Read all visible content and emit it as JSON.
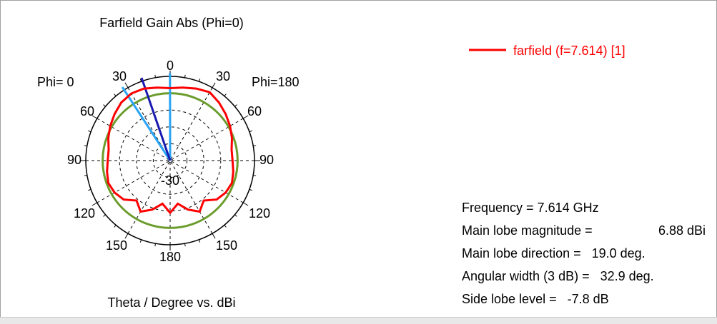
{
  "chart_data": {
    "type": "polar",
    "title": "Farfield Gain Abs (Phi=0)",
    "xlabel": "Theta / Degree vs. dBi",
    "phi_left_label": "Phi=  0",
    "phi_right_label": "Phi=180",
    "theta_tick_labels_top": [
      "30",
      "0",
      "30"
    ],
    "theta_tick_labels_side": [
      "60",
      "90",
      "120",
      "150",
      "180",
      "150",
      "120",
      "90",
      "60"
    ],
    "center_label": "-30",
    "grid": true,
    "radial_range_dBi": [
      -40,
      10
    ],
    "series": [
      {
        "name": "farfield (f=7.614) [1]",
        "color": "#ff0000",
        "theta_deg": [
          -180,
          -170,
          -160,
          -150,
          -140,
          -130,
          -120,
          -110,
          -100,
          -90,
          -80,
          -70,
          -60,
          -50,
          -40,
          -30,
          -20,
          -10,
          0,
          10,
          20,
          30,
          40,
          50,
          60,
          70,
          80,
          90,
          100,
          110,
          120,
          130,
          140,
          150,
          160,
          170,
          180
        ],
        "gain_dBi": [
          -9,
          -14,
          -9,
          -5,
          -9,
          -4,
          -2,
          -1,
          -2,
          -3,
          -3,
          -1,
          1,
          3,
          5,
          6,
          5.5,
          4,
          3,
          4,
          5.5,
          6.88,
          5,
          3,
          1,
          -1,
          -3,
          -3,
          -2,
          -1,
          -2,
          -4,
          -9,
          -5,
          -9,
          -14,
          -9
        ]
      }
    ],
    "reference_circle": {
      "color": "#6b9c2c",
      "gain_dBi": 0
    },
    "markers": {
      "main_lobe_color": "#1a1ab0",
      "beamwidth_color": "#2aa4f4",
      "main_lobe_dir_deg": -19,
      "beamwidth_deg": [
        -33,
        -0.1
      ]
    },
    "legend": {
      "label": "farfield (f=7.614) [1]",
      "color": "#ff0000",
      "position": "top-right"
    }
  },
  "info": {
    "frequency": "Frequency = 7.614 GHz",
    "magnitude_label": "Main lobe magnitude =",
    "magnitude_value": "6.88 dBi",
    "direction": "Main lobe direction =   19.0 deg.",
    "angular_width": "Angular width (3 dB) =   32.9 deg.",
    "side_lobe": "Side lobe level =   -7.8 dB"
  }
}
